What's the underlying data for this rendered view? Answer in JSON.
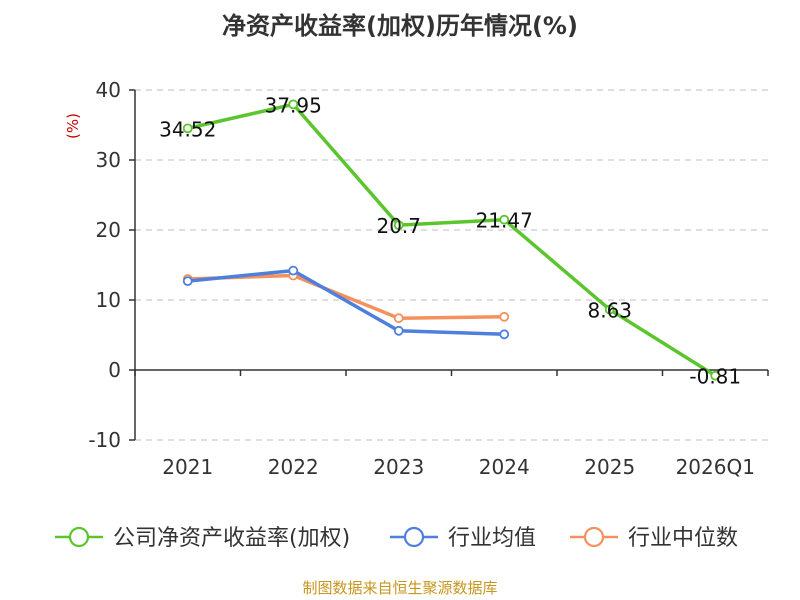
{
  "chart_data": {
    "type": "line",
    "title": "净资产收益率(加权)历年情况(%)",
    "ylabel": "(%)",
    "xlabel": "",
    "categories": [
      "2021",
      "2022",
      "2023",
      "2024",
      "2025",
      "2026Q1"
    ],
    "ylim": [
      -10,
      40
    ],
    "yticks": [
      -10,
      0,
      10,
      20,
      30,
      40
    ],
    "grid": true,
    "legend_position": "bottom",
    "series": [
      {
        "name": "公司净资产收益率(加权)",
        "color": "#5bc52d",
        "values": [
          34.52,
          37.95,
          20.7,
          21.47,
          8.63,
          -0.81
        ],
        "labels": [
          "34.52",
          "37.95",
          "20.7",
          "21.47",
          "8.63",
          "-0.81"
        ]
      },
      {
        "name": "行业均值",
        "color": "#4f7fdc",
        "values": [
          12.7,
          14.2,
          5.6,
          5.1,
          null,
          null
        ]
      },
      {
        "name": "行业中位数",
        "color": "#f4915c",
        "values": [
          13.0,
          13.5,
          7.4,
          7.6,
          null,
          null
        ]
      }
    ],
    "source": "制图数据来自恒生聚源数据库",
    "colors": {
      "axis": "#333333",
      "grid": "#cccccc",
      "unit": "#cc0000",
      "source": "#c8961e"
    }
  }
}
